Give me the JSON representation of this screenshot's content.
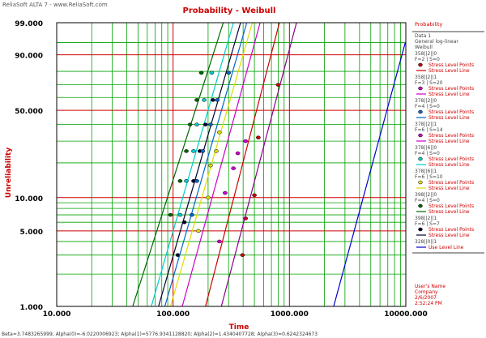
{
  "header": {
    "app_label": "ReliaSoft ALTA 7 - www.ReliaSoft.com"
  },
  "footer": {
    "params": "Beta=3.7483265999; Alpha(0)=-6.0220006923; Alpha(1)=5776.9341128820; Alpha(2)=1.4340407728; Alpha(3)=0.6242324673"
  },
  "colors": {
    "title": "#cc0000",
    "major_grid": "#cc0000",
    "minor_grid": "#00a000",
    "legend_text": "#cc0000"
  },
  "legend": {
    "heading": "Probability",
    "data_title": "Data 1",
    "model_lines": [
      "General log-linear",
      "Weibull"
    ],
    "groups": [
      {
        "header": "358||2||0",
        "fs": "F=2 | S=0",
        "point_label": "Stress Level Points",
        "line_label": "Stress Level Line",
        "color": "#cc0000"
      },
      {
        "header": "358||2||1",
        "fs": "F=3 | S=20",
        "point_label": "Stress Level Points",
        "line_label": "Stress Level Line",
        "color": "#cc00cc"
      },
      {
        "header": "378||2||0",
        "fs": "F=4 | S=0",
        "point_label": "Stress Level Points",
        "line_label": "Stress Level Line",
        "color": "#0066cc"
      },
      {
        "header": "378||2||1",
        "fs": "F=6 | S=14",
        "point_label": "Stress Level Points",
        "line_label": "Stress Level Line",
        "color": "#cc00cc"
      },
      {
        "header": "378||6||0",
        "fs": "F=4 | S=0",
        "point_label": "Stress Level Points",
        "line_label": "Stress Level Line",
        "color": "#00cccc"
      },
      {
        "header": "378||6||1",
        "fs": "F=6 | S=10",
        "point_label": "Stress Level Points",
        "line_label": "Stress Level Line",
        "color": "#dddd00"
      },
      {
        "header": "398||2||0",
        "fs": "F=4 | S=0",
        "point_label": "Stress Level Points",
        "line_label": "Stress Level Line",
        "color": "#006600"
      },
      {
        "header": "398||2||1",
        "fs": "F=6 | S=7",
        "point_label": "Stress Level Points",
        "line_label": "Stress Level Line",
        "color": "#000033"
      }
    ],
    "use_header": "328||0||1",
    "use_label": "Use Level Line",
    "use_color": "#0000cc",
    "user": [
      "User's Name",
      "Company",
      "2/6/2007",
      "2:52:24 PM"
    ]
  },
  "chart_data": {
    "type": "line",
    "title": "Probability - Weibull",
    "xlabel": "Time",
    "ylabel": "Unreliability",
    "x_scale": "log",
    "y_scale": "weibull",
    "xlim": [
      10,
      10000
    ],
    "ylim": [
      1,
      99
    ],
    "x_ticks": [
      10,
      100,
      1000,
      10000
    ],
    "x_tick_labels": [
      "10.000",
      "100.000",
      "1000.000",
      "10000.000"
    ],
    "y_ticks": [
      1,
      5,
      10,
      50,
      90,
      99
    ],
    "y_tick_labels": [
      "1.000",
      "5.000",
      "10.000",
      "50.000",
      "90.000",
      "99.000"
    ],
    "series": [
      {
        "color": "#006600",
        "line": [
          [
            45,
            1
          ],
          [
            270,
            99
          ]
        ],
        "points": [
          [
            175,
            79
          ],
          [
            160,
            58
          ],
          [
            140,
            40
          ],
          [
            130,
            25
          ],
          [
            115,
            14
          ],
          [
            95,
            7
          ]
        ]
      },
      {
        "color": "#00cccc",
        "line": [
          [
            65,
            1
          ],
          [
            330,
            99
          ]
        ],
        "points": [
          [
            215,
            79
          ],
          [
            185,
            58
          ],
          [
            160,
            40
          ],
          [
            150,
            25
          ],
          [
            130,
            14
          ],
          [
            115,
            7
          ]
        ]
      },
      {
        "color": "#000033",
        "line": [
          [
            75,
            1
          ],
          [
            380,
            99
          ]
        ],
        "points": [
          [
            220,
            58
          ],
          [
            190,
            40
          ],
          [
            170,
            25
          ],
          [
            150,
            14
          ],
          [
            125,
            6
          ],
          [
            110,
            3
          ]
        ]
      },
      {
        "color": "#0066cc",
        "line": [
          [
            85,
            1
          ],
          [
            430,
            99
          ]
        ],
        "points": [
          [
            300,
            79
          ],
          [
            240,
            58
          ],
          [
            210,
            40
          ],
          [
            180,
            25
          ],
          [
            160,
            14
          ],
          [
            145,
            7
          ]
        ]
      },
      {
        "color": "#dddd00",
        "line": [
          [
            95,
            1
          ],
          [
            480,
            99
          ]
        ],
        "points": [
          [
            250,
            35
          ],
          [
            235,
            25
          ],
          [
            210,
            19
          ],
          [
            200,
            10
          ],
          [
            165,
            5
          ]
        ]
      },
      {
        "color": "#cc00cc",
        "line": [
          [
            120,
            1
          ],
          [
            560,
            99
          ]
        ],
        "points": [
          [
            420,
            30
          ],
          [
            360,
            24
          ],
          [
            330,
            18
          ],
          [
            280,
            11
          ],
          [
            250,
            4
          ]
        ]
      },
      {
        "color": "#cc0000",
        "line": [
          [
            190,
            1
          ],
          [
            820,
            99
          ]
        ],
        "points": [
          [
            800,
            70
          ],
          [
            540,
            32
          ],
          [
            500,
            10.5
          ],
          [
            420,
            6.5
          ],
          [
            395,
            3
          ]
        ]
      },
      {
        "color": "#880088",
        "line": [
          [
            260,
            1
          ],
          [
            1150,
            99
          ]
        ],
        "points": []
      },
      {
        "color": "#0000cc",
        "line": [
          [
            2400,
            1
          ],
          [
            9900,
            95
          ]
        ],
        "points": []
      }
    ]
  }
}
